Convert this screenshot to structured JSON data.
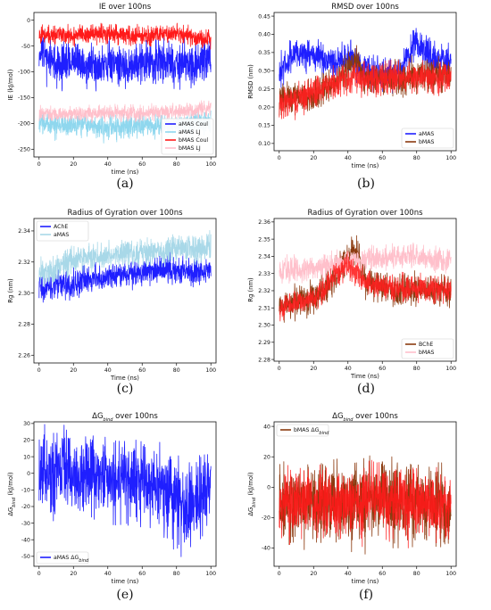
{
  "chart_data": [
    {
      "type": "line",
      "title": "IE over 100ns",
      "xlabel": "time (ns)",
      "ylabel": "IE (kJ/mol)",
      "xlim": [
        -3,
        103
      ],
      "ylim": [
        -265,
        15
      ],
      "xticks": [
        "0",
        "20",
        "40",
        "60",
        "80",
        "100"
      ],
      "yticks": [
        "0",
        "-50",
        "-100",
        "-150",
        "-200",
        "-250"
      ],
      "xtick_values": [
        0,
        20,
        40,
        60,
        80,
        100
      ],
      "ytick_values": [
        0,
        -50,
        -100,
        -150,
        -200,
        -250
      ],
      "legend_position": "lower-right",
      "caption": "(a)",
      "series": [
        {
          "name": "aMAS Coul",
          "color": "#1f1fff",
          "base": -85,
          "amp": 28,
          "points": [
            [
              0,
              -60
            ],
            [
              10,
              -88
            ],
            [
              20,
              -80
            ],
            [
              30,
              -92
            ],
            [
              40,
              -78
            ],
            [
              50,
              -90
            ],
            [
              60,
              -82
            ],
            [
              70,
              -80
            ],
            [
              80,
              -83
            ],
            [
              90,
              -88
            ],
            [
              100,
              -70
            ]
          ]
        },
        {
          "name": "aMAS LJ",
          "color": "#8fd7ee",
          "base": -205,
          "amp": 16,
          "points": [
            [
              0,
              -200
            ],
            [
              20,
              -205
            ],
            [
              40,
              -207
            ],
            [
              60,
              -205
            ],
            [
              80,
              -203
            ],
            [
              100,
              -198
            ]
          ]
        },
        {
          "name": "bMAS Coul",
          "color": "#ff1a1a",
          "base": -28,
          "amp": 12,
          "points": [
            [
              0,
              -30
            ],
            [
              20,
              -28
            ],
            [
              40,
              -26
            ],
            [
              60,
              -30
            ],
            [
              80,
              -25
            ],
            [
              100,
              -40
            ]
          ]
        },
        {
          "name": "bMAS LJ",
          "color": "#ffc0cb",
          "base": -180,
          "amp": 10,
          "points": [
            [
              0,
              -180
            ],
            [
              20,
              -182
            ],
            [
              40,
              -178
            ],
            [
              60,
              -180
            ],
            [
              80,
              -176
            ],
            [
              100,
              -172
            ]
          ]
        }
      ]
    },
    {
      "type": "line",
      "title": "RMSD over 100ns",
      "xlabel": "time (ns)",
      "ylabel": "RMSD (nm)",
      "xlim": [
        -3,
        103
      ],
      "ylim": [
        0.08,
        0.46
      ],
      "xticks": [
        "0",
        "20",
        "40",
        "60",
        "80",
        "100"
      ],
      "yticks": [
        "0.10",
        "0.15",
        "0.20",
        "0.25",
        "0.30",
        "0.35",
        "0.40",
        "0.45"
      ],
      "xtick_values": [
        0,
        20,
        40,
        60,
        80,
        100
      ],
      "ytick_values": [
        0.1,
        0.15,
        0.2,
        0.25,
        0.3,
        0.35,
        0.4,
        0.45
      ],
      "legend_position": "lower-right",
      "caption": "(b)",
      "series": [
        {
          "name": "aMAS",
          "color": "#1f1fff",
          "base": 0.34,
          "amp": 0.03,
          "points": [
            [
              0,
              0.3
            ],
            [
              10,
              0.35
            ],
            [
              20,
              0.34
            ],
            [
              30,
              0.33
            ],
            [
              40,
              0.34
            ],
            [
              50,
              0.3
            ],
            [
              60,
              0.29
            ],
            [
              70,
              0.29
            ],
            [
              80,
              0.38
            ],
            [
              90,
              0.33
            ],
            [
              100,
              0.33
            ]
          ]
        },
        {
          "name": "bMAS",
          "color": "#8b3a0f",
          "base": 0.26,
          "amp": 0.03,
          "points": [
            [
              0,
              0.22
            ],
            [
              10,
              0.23
            ],
            [
              20,
              0.23
            ],
            [
              30,
              0.26
            ],
            [
              40,
              0.3
            ],
            [
              45,
              0.33
            ],
            [
              50,
              0.27
            ],
            [
              60,
              0.28
            ],
            [
              70,
              0.28
            ],
            [
              80,
              0.29
            ],
            [
              90,
              0.29
            ],
            [
              100,
              0.29
            ]
          ]
        }
      ],
      "overlay": {
        "color": "#ff2020",
        "points": [
          [
            0,
            0.21
          ],
          [
            10,
            0.22
          ],
          [
            20,
            0.24
          ],
          [
            30,
            0.26
          ],
          [
            40,
            0.28
          ],
          [
            50,
            0.28
          ],
          [
            60,
            0.28
          ],
          [
            70,
            0.28
          ],
          [
            80,
            0.28
          ],
          [
            90,
            0.28
          ],
          [
            100,
            0.28
          ]
        ],
        "amp": 0.03
      }
    },
    {
      "type": "line",
      "title": "Radius of Gyration over 100ns",
      "xlabel": "Time (ns)",
      "ylabel": "Rg (nm)",
      "xlim": [
        -3,
        103
      ],
      "ylim": [
        2.255,
        2.348
      ],
      "xticks": [
        "0",
        "20",
        "40",
        "60",
        "80",
        "100"
      ],
      "yticks": [
        "2.26",
        "2.28",
        "2.30",
        "2.32",
        "2.34"
      ],
      "xtick_values": [
        0,
        20,
        40,
        60,
        80,
        100
      ],
      "ytick_values": [
        2.26,
        2.28,
        2.3,
        2.32,
        2.34
      ],
      "legend_position": "top-left",
      "caption": "(c)",
      "series": [
        {
          "name": "AChE",
          "color": "#1f1fff",
          "base": 2.31,
          "amp": 0.006,
          "points": [
            [
              0,
              2.303
            ],
            [
              10,
              2.305
            ],
            [
              20,
              2.306
            ],
            [
              30,
              2.309
            ],
            [
              40,
              2.31
            ],
            [
              50,
              2.313
            ],
            [
              60,
              2.313
            ],
            [
              70,
              2.315
            ],
            [
              80,
              2.316
            ],
            [
              90,
              2.313
            ],
            [
              100,
              2.315
            ]
          ]
        },
        {
          "name": "aMAS",
          "color": "#a8d8e8",
          "base": 2.32,
          "amp": 0.006,
          "points": [
            [
              0,
              2.312
            ],
            [
              10,
              2.317
            ],
            [
              20,
              2.321
            ],
            [
              30,
              2.323
            ],
            [
              40,
              2.324
            ],
            [
              50,
              2.325
            ],
            [
              60,
              2.326
            ],
            [
              70,
              2.327
            ],
            [
              80,
              2.329
            ],
            [
              90,
              2.328
            ],
            [
              100,
              2.33
            ]
          ]
        }
      ]
    },
    {
      "type": "line",
      "title": "Radius of Gyration over 100ns",
      "xlabel": "Time (ns)",
      "ylabel": "Rg (nm)",
      "xlim": [
        -3,
        103
      ],
      "ylim": [
        2.279,
        2.362
      ],
      "xticks": [
        "0",
        "20",
        "40",
        "60",
        "80",
        "100"
      ],
      "yticks": [
        "2.28",
        "2.29",
        "2.30",
        "2.31",
        "2.32",
        "2.33",
        "2.34",
        "2.35",
        "2.36"
      ],
      "xtick_values": [
        0,
        20,
        40,
        60,
        80,
        100
      ],
      "ytick_values": [
        2.28,
        2.29,
        2.3,
        2.31,
        2.32,
        2.33,
        2.34,
        2.35,
        2.36
      ],
      "legend_position": "lower-right",
      "caption": "(d)",
      "series": [
        {
          "name": "BChE",
          "color": "#8b3a0f",
          "base": 2.318,
          "amp": 0.006,
          "points": [
            [
              0,
              2.31
            ],
            [
              10,
              2.313
            ],
            [
              20,
              2.315
            ],
            [
              30,
              2.325
            ],
            [
              40,
              2.34
            ],
            [
              45,
              2.345
            ],
            [
              50,
              2.326
            ],
            [
              60,
              2.322
            ],
            [
              70,
              2.32
            ],
            [
              80,
              2.322
            ],
            [
              90,
              2.32
            ],
            [
              100,
              2.32
            ]
          ]
        },
        {
          "name": "bMAS",
          "color": "#ffc0cb",
          "base": 2.335,
          "amp": 0.005,
          "points": [
            [
              0,
              2.332
            ],
            [
              20,
              2.333
            ],
            [
              40,
              2.336
            ],
            [
              60,
              2.34
            ],
            [
              80,
              2.34
            ],
            [
              100,
              2.337
            ]
          ]
        }
      ],
      "overlay": {
        "color": "#ff2020",
        "points": [
          [
            0,
            2.31
          ],
          [
            20,
            2.315
          ],
          [
            40,
            2.336
          ],
          [
            50,
            2.325
          ],
          [
            60,
            2.322
          ],
          [
            80,
            2.322
          ],
          [
            100,
            2.32
          ]
        ],
        "amp": 0.005
      }
    },
    {
      "type": "line",
      "title_main": "ΔG",
      "title_sub": "bind",
      "title_rest": " over 100ns",
      "xlabel": "time (ns)",
      "ylabel_main": "ΔG",
      "ylabel_sub": "bind",
      "ylabel_rest": " (kJ/mol)",
      "xlim": [
        -3,
        103
      ],
      "ylim": [
        -56,
        31
      ],
      "xticks": [
        "0",
        "20",
        "40",
        "60",
        "80",
        "100"
      ],
      "yticks": [
        "30",
        "20",
        "10",
        "0",
        "-10",
        "-20",
        "-30",
        "-40",
        "-50"
      ],
      "xtick_values": [
        0,
        20,
        40,
        60,
        80,
        100
      ],
      "ytick_values": [
        30,
        20,
        10,
        0,
        -10,
        -20,
        -30,
        -40,
        -50
      ],
      "legend_position": "lower-left",
      "caption": "(e)",
      "series": [
        {
          "name_main": "aMAS ΔG",
          "name_sub": "bind",
          "color": "#1f1fff",
          "base": 0,
          "amp": 16,
          "points": [
            [
              0,
              0
            ],
            [
              20,
              0
            ],
            [
              40,
              -2
            ],
            [
              60,
              -5
            ],
            [
              70,
              -10
            ],
            [
              80,
              -18
            ],
            [
              90,
              -20
            ],
            [
              95,
              -15
            ],
            [
              100,
              -5
            ]
          ]
        }
      ]
    },
    {
      "type": "line",
      "title_main": "ΔG",
      "title_sub": "bind",
      "title_rest": " over 100ns",
      "xlabel": "time (ns)",
      "ylabel_main": "ΔG",
      "ylabel_sub": "bind",
      "ylabel_rest": " (kJ/mol)",
      "xlim": [
        -3,
        103
      ],
      "ylim": [
        -52,
        43
      ],
      "xticks": [
        "0",
        "20",
        "40",
        "60",
        "80",
        "100"
      ],
      "yticks": [
        "40",
        "20",
        "0",
        "-20",
        "-40"
      ],
      "xtick_values": [
        0,
        20,
        40,
        60,
        80,
        100
      ],
      "ytick_values": [
        40,
        20,
        0,
        -20,
        -40
      ],
      "legend_position": "top-left",
      "caption": "(f)",
      "series": [
        {
          "name_main": "bMAS ΔG",
          "name_sub": "bind",
          "color": "#8b3a0f",
          "base": -10,
          "amp": 17,
          "points": [
            [
              0,
              -10
            ],
            [
              20,
              -10
            ],
            [
              40,
              -12
            ],
            [
              60,
              -8
            ],
            [
              80,
              -10
            ],
            [
              100,
              -15
            ]
          ]
        }
      ],
      "overlay": {
        "color": "#ff1a1a",
        "points": [
          [
            0,
            -10
          ],
          [
            20,
            -10
          ],
          [
            40,
            -12
          ],
          [
            60,
            -8
          ],
          [
            80,
            -10
          ],
          [
            100,
            -15
          ]
        ],
        "amp": 15
      }
    }
  ]
}
